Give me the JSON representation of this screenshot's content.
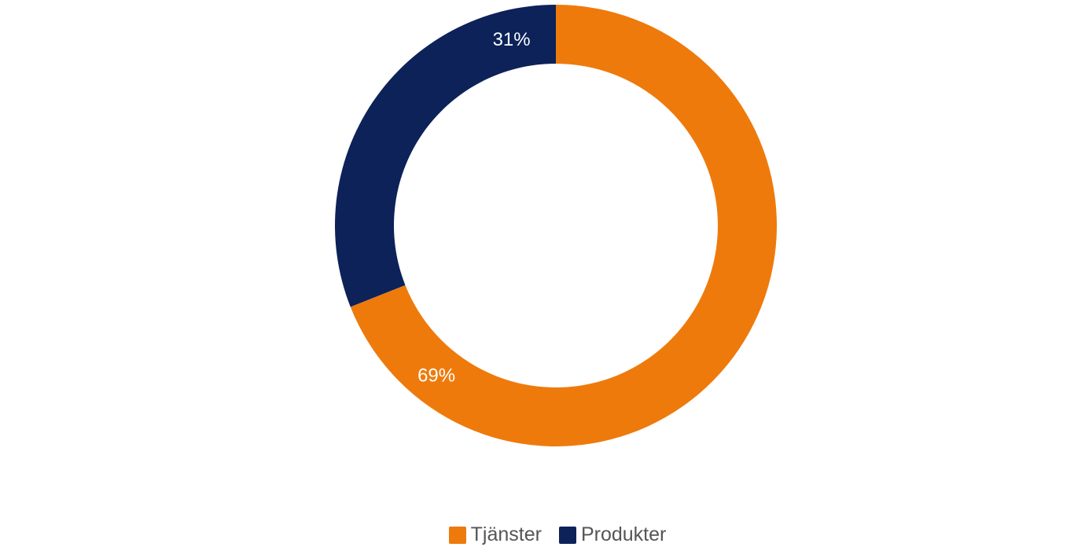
{
  "chart_data": {
    "type": "pie",
    "variant": "donut",
    "categories": [
      "Tjänster",
      "Produkter"
    ],
    "values": [
      69,
      31
    ],
    "labels": [
      "69%",
      "31%"
    ],
    "colors": [
      "#EE7A0C",
      "#0C2259"
    ],
    "legend_position": "bottom",
    "title": ""
  }
}
